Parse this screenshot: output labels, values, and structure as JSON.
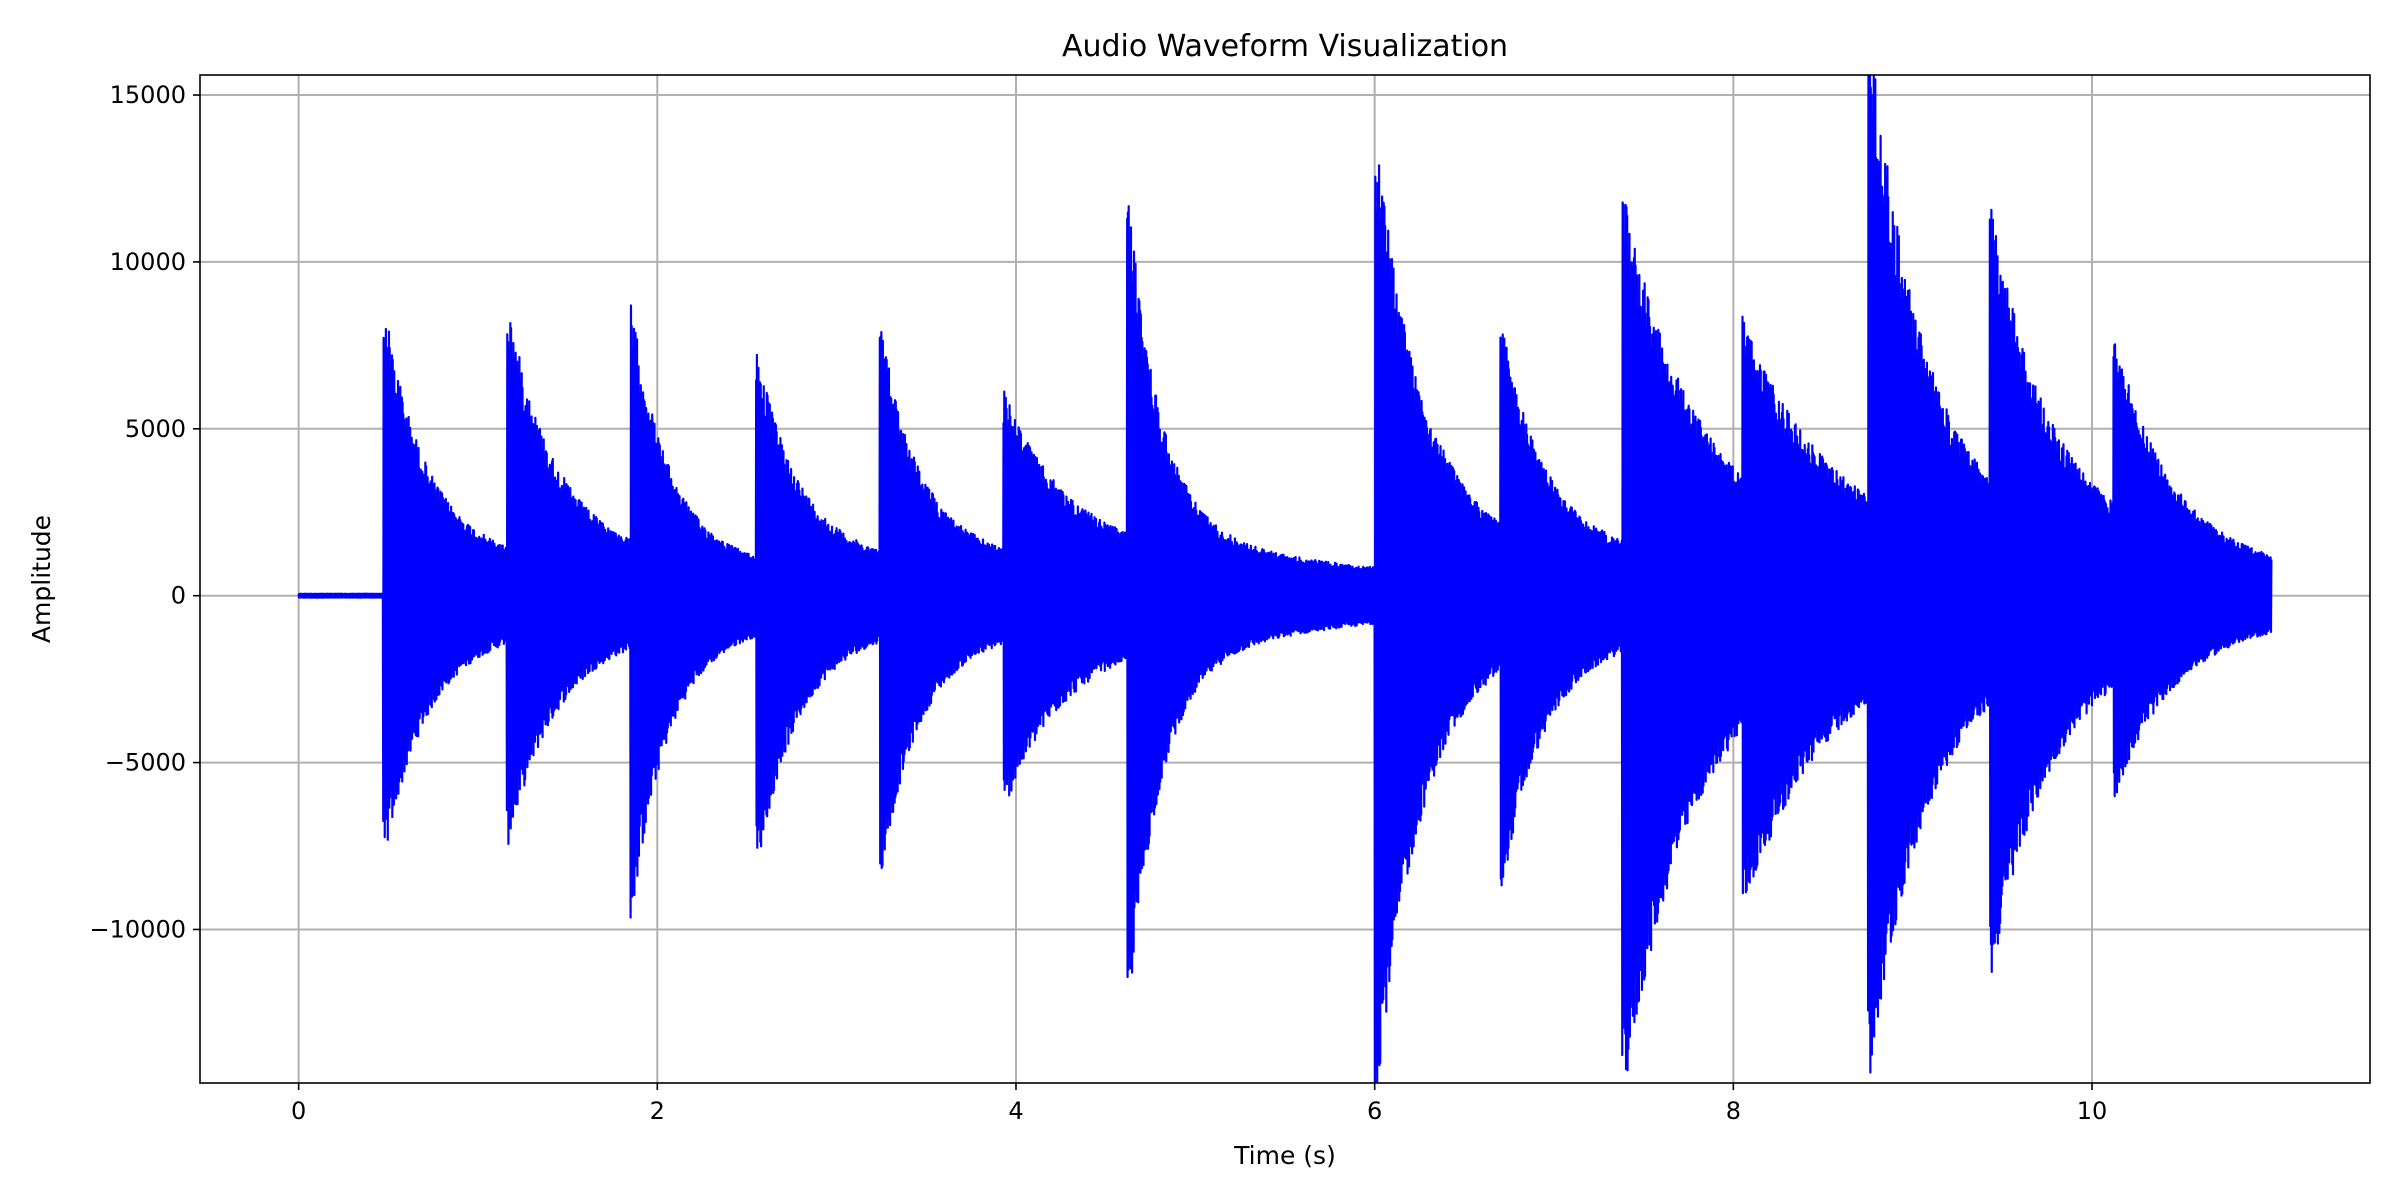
{
  "chart_data": {
    "type": "line",
    "title": "Audio Waveform Visualization",
    "xlabel": "Time (s)",
    "ylabel": "Amplitude",
    "xlim": [
      -0.55,
      11.55
    ],
    "ylim": [
      -14600,
      15600
    ],
    "xticks": [
      0,
      2,
      4,
      6,
      8,
      10
    ],
    "yticks": [
      -10000,
      -5000,
      0,
      5000,
      10000,
      15000
    ],
    "xtick_labels": [
      "0",
      "2",
      "4",
      "6",
      "8",
      "10"
    ],
    "ytick_labels": [
      "−10000",
      "−5000",
      "0",
      "5000",
      "10000",
      "15000"
    ],
    "grid": true,
    "legend": "none",
    "line_color": "#0000ff",
    "duration_s": 11.0,
    "silence_end_s": 0.47,
    "envelope_noise": 0.18,
    "onsets": [
      {
        "t": 0.47,
        "peak_pos": 7200,
        "peak_neg": -6400,
        "decay_s": 0.22,
        "tail": 1800
      },
      {
        "t": 1.16,
        "peak_pos": 7100,
        "peak_neg": -5800,
        "decay_s": 0.25,
        "tail": 1900
      },
      {
        "t": 1.85,
        "peak_pos": 7500,
        "peak_neg": -8500,
        "decay_s": 0.2,
        "tail": 1500
      },
      {
        "t": 2.55,
        "peak_pos": 5900,
        "peak_neg": -6700,
        "decay_s": 0.22,
        "tail": 1700
      },
      {
        "t": 3.24,
        "peak_pos": 6500,
        "peak_neg": -6800,
        "decay_s": 0.2,
        "tail": 1900
      },
      {
        "t": 3.93,
        "peak_pos": 3900,
        "peak_neg": -4200,
        "decay_s": 0.3,
        "tail": 2300
      },
      {
        "t": 4.62,
        "peak_pos": 10400,
        "peak_neg": -11000,
        "decay_s": 0.18,
        "tail": 2000
      },
      {
        "t": 6.0,
        "peak_pos": 11900,
        "peak_neg": -13300,
        "decay_s": 0.25,
        "tail": 2300
      },
      {
        "t": 6.7,
        "peak_pos": 6400,
        "peak_neg": -7100,
        "decay_s": 0.22,
        "tail": 2100
      },
      {
        "t": 7.38,
        "peak_pos": 8900,
        "peak_neg": -11900,
        "decay_s": 0.35,
        "tail": 3500
      },
      {
        "t": 8.05,
        "peak_pos": 5100,
        "peak_neg": -6300,
        "decay_s": 0.4,
        "tail": 3300
      },
      {
        "t": 8.75,
        "peak_pos": 14200,
        "peak_neg": -11700,
        "decay_s": 0.28,
        "tail": 3500
      },
      {
        "t": 9.43,
        "peak_pos": 9100,
        "peak_neg": -8900,
        "decay_s": 0.3,
        "tail": 2900
      },
      {
        "t": 10.12,
        "peak_pos": 6500,
        "peak_neg": -4700,
        "decay_s": 0.3,
        "tail": 1500
      }
    ]
  }
}
